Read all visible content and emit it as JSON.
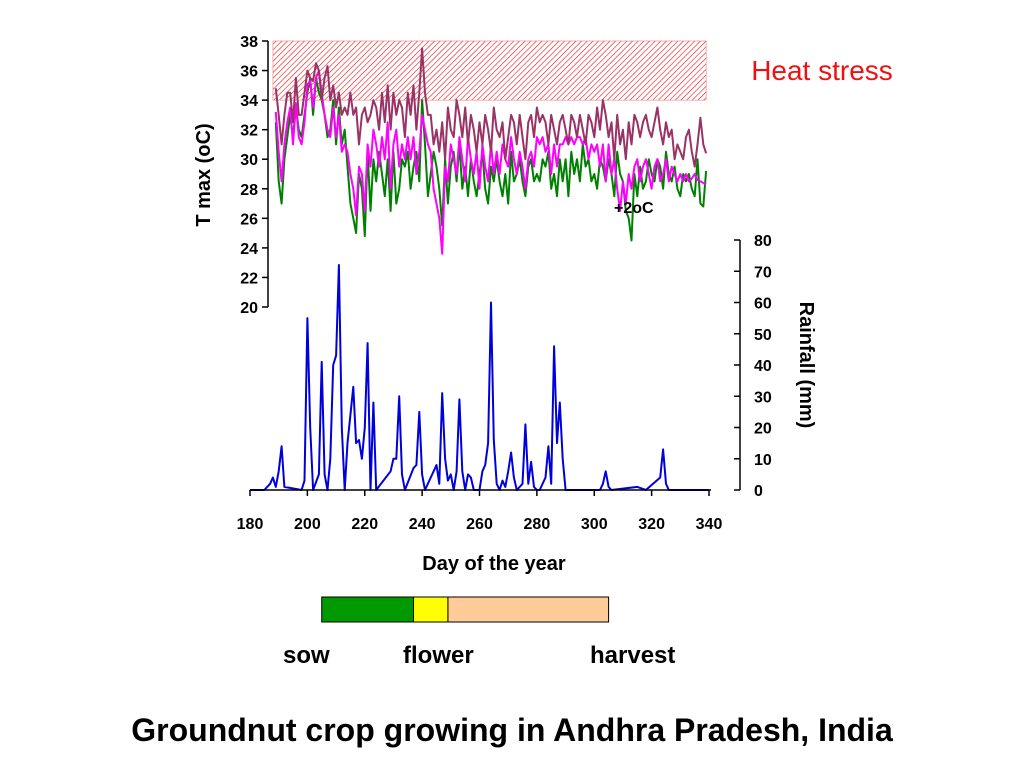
{
  "title": "Groundnut crop growing in Andhra Pradesh, India",
  "heat_stress_label": "Heat stress",
  "annotation": "+2",
  "annotation_unit": "oC",
  "stages": {
    "sow": "sow",
    "flower": "flower",
    "harvest": "harvest"
  },
  "colors": {
    "sow": "#009900",
    "flower": "#ffff00",
    "harvest": "#ffcc99",
    "rain": "#0000dd",
    "t_base": "#008000",
    "t_plus": "#ff00ff",
    "t_plus2": "#993366",
    "heat": "#ee1111"
  },
  "chart_data": {
    "type": "line",
    "xlabel": "Day of the year",
    "ylabel_left": "T max (oC)",
    "ylabel_right": "Rainfall (mm)",
    "xlim": [
      180,
      340
    ],
    "x_ticks": [
      180,
      200,
      220,
      240,
      260,
      280,
      300,
      320,
      340
    ],
    "ylim_left": [
      20,
      38
    ],
    "y_ticks_left": [
      20,
      22,
      24,
      26,
      28,
      30,
      32,
      34,
      36,
      38
    ],
    "ylim_right": [
      0,
      80
    ],
    "y_ticks_right": [
      0,
      10,
      20,
      30,
      40,
      50,
      60,
      70,
      80
    ],
    "heat_stress_range": {
      "x": [
        188,
        339
      ],
      "y": [
        34,
        38
      ]
    },
    "stage_bars": [
      {
        "stage": "sow",
        "start": 205,
        "end": 237
      },
      {
        "stage": "flower",
        "start": 237,
        "end": 249
      },
      {
        "stage": "harvest",
        "start": 249,
        "end": 305
      }
    ],
    "series": [
      {
        "axis": "left",
        "color_key": "t_base",
        "x": [
          189,
          190,
          191,
          192,
          193,
          194,
          195,
          196,
          197,
          198,
          199,
          200,
          201,
          202,
          203,
          204,
          205,
          206,
          207,
          208,
          209,
          210,
          211,
          212,
          213,
          214,
          215,
          216,
          217,
          218,
          219,
          220,
          221,
          222,
          223,
          224,
          225,
          226,
          227,
          228,
          229,
          230,
          231,
          232,
          233,
          234,
          235,
          236,
          237,
          238,
          239,
          240,
          241,
          242,
          243,
          244,
          245,
          246,
          247,
          248,
          249,
          250,
          251,
          252,
          253,
          254,
          255,
          256,
          257,
          258,
          259,
          260,
          261,
          262,
          263,
          264,
          265,
          266,
          267,
          268,
          269,
          270,
          271,
          272,
          273,
          274,
          275,
          276,
          277,
          278,
          279,
          280,
          281,
          282,
          283,
          284,
          285,
          286,
          287,
          288,
          289,
          290,
          291,
          292,
          293,
          294,
          295,
          296,
          297,
          298,
          299,
          300,
          301,
          302,
          303,
          304,
          305,
          306,
          307,
          308,
          309,
          310,
          311,
          312,
          313,
          314,
          315,
          316,
          317,
          318,
          319,
          320,
          321,
          322,
          323,
          324,
          325,
          326,
          327,
          328,
          329,
          330,
          331,
          332,
          333,
          334,
          335,
          336,
          337,
          338,
          339
        ],
        "y": [
          32.5,
          28.5,
          27,
          30,
          31.5,
          33,
          31.5,
          33.5,
          32,
          31.5,
          33,
          34.5,
          35.5,
          33,
          35.5,
          34.5,
          34,
          33,
          31.5,
          32,
          34,
          31,
          33.5,
          31,
          32,
          29.5,
          27,
          26,
          25,
          29,
          28,
          24.8,
          30.5,
          26.5,
          30,
          28.5,
          30.5,
          29,
          27.5,
          30,
          26.5,
          30.5,
          27,
          28,
          30,
          29.5,
          30.5,
          28,
          29.5,
          30.5,
          28.5,
          34,
          31,
          27.5,
          29,
          30.5,
          29.5,
          28,
          25.5,
          30,
          27,
          29.5,
          30.5,
          28.5,
          31,
          28,
          29.5,
          27.5,
          30,
          28.5,
          27.5,
          29,
          30.5,
          28,
          27,
          29.5,
          28.5,
          30,
          28.5,
          27.5,
          29,
          27,
          30.5,
          28.5,
          29,
          30,
          28.5,
          27.5,
          29.5,
          30,
          28.5,
          29,
          28.5,
          30,
          29.5,
          30.5,
          28,
          29,
          27.5,
          30,
          28.5,
          30,
          27.5,
          30.5,
          29,
          30,
          28.5,
          31,
          29.5,
          30,
          28.5,
          29,
          28,
          30,
          29.5,
          28.5,
          30,
          29,
          27.5,
          30.5,
          29,
          28.5,
          26.5,
          26,
          24.5,
          29,
          27.5,
          29.5,
          28,
          28.5,
          30,
          29,
          28.5,
          30,
          29.5,
          28,
          30.5,
          29,
          28.5,
          29.5,
          28,
          27.5,
          29,
          28.5,
          29,
          28,
          27.5,
          30,
          27,
          26.8,
          29.2
        ]
      },
      {
        "axis": "left",
        "color_key": "t_plus",
        "x": [
          189,
          190,
          191,
          192,
          193,
          194,
          195,
          196,
          197,
          198,
          199,
          200,
          201,
          202,
          203,
          204,
          205,
          206,
          207,
          208,
          209,
          210,
          211,
          212,
          213,
          214,
          215,
          216,
          217,
          218,
          219,
          220,
          221,
          222,
          223,
          224,
          225,
          226,
          227,
          228,
          229,
          230,
          231,
          232,
          233,
          234,
          235,
          236,
          237,
          238,
          239,
          240,
          241,
          242,
          243,
          244,
          245,
          246,
          247,
          248,
          249,
          250,
          251,
          252,
          253,
          254,
          255,
          256,
          257,
          258,
          259,
          260,
          261,
          262,
          263,
          264,
          265,
          266,
          267,
          268,
          269,
          270,
          271,
          272,
          273,
          274,
          275,
          276,
          277,
          278,
          279,
          280,
          281,
          282,
          283,
          284,
          285,
          286,
          287,
          288,
          289,
          290,
          291,
          292,
          293,
          294,
          295,
          296,
          297,
          298,
          299,
          300,
          301,
          302,
          303,
          304,
          305,
          306,
          307,
          308,
          309,
          310,
          311,
          312,
          313,
          314,
          315,
          316,
          317,
          318,
          319,
          320,
          321,
          322,
          323,
          324,
          325,
          326,
          327,
          328,
          329,
          330,
          331,
          332,
          333,
          334,
          335,
          336,
          337,
          338,
          339
        ],
        "y": [
          33.2,
          30.5,
          28.5,
          31,
          32.5,
          33.5,
          31,
          33.8,
          31.5,
          31,
          32.5,
          35,
          35.3,
          33.5,
          35.5,
          36,
          34.5,
          33,
          32,
          31.5,
          33.5,
          31.5,
          33,
          30.5,
          31,
          30.5,
          29,
          28,
          26.2,
          29.5,
          29,
          26.5,
          31,
          29.5,
          32,
          31,
          29.5,
          31.5,
          30,
          32.5,
          28,
          31,
          32,
          29.5,
          31,
          30,
          31.5,
          30,
          31.5,
          29,
          30.5,
          33,
          32,
          31,
          30.5,
          28,
          27,
          26,
          23.6,
          29.5,
          28.5,
          31,
          30,
          29,
          31.5,
          30,
          28.5,
          31.5,
          30,
          29,
          30.5,
          28,
          31,
          29.5,
          28.5,
          31,
          29,
          30.5,
          29,
          31,
          30,
          29.5,
          31.5,
          30,
          29,
          30.5,
          29.5,
          28,
          30,
          30.5,
          29.5,
          31.5,
          31,
          31.5,
          30.5,
          31,
          29,
          31,
          29.5,
          31,
          31,
          31.5,
          31,
          31.5,
          31,
          31.5,
          31.5,
          31,
          31.5,
          30,
          31,
          30.5,
          31,
          29.5,
          31,
          28.5,
          31,
          29,
          30,
          28,
          26.5,
          28.5,
          27,
          29,
          28,
          29.5,
          30,
          28.5,
          29.5,
          30,
          29,
          28,
          29.5,
          30,
          28.5,
          29,
          30,
          28.5,
          29.5,
          29,
          28.5,
          29,
          28.5,
          29,
          28.5,
          28.7,
          29,
          28.6,
          28.5,
          28.4,
          28.3
        ]
      },
      {
        "axis": "left",
        "color_key": "t_plus2",
        "x": [
          189,
          190,
          191,
          192,
          193,
          194,
          195,
          196,
          197,
          198,
          199,
          200,
          201,
          202,
          203,
          204,
          205,
          206,
          207,
          208,
          209,
          210,
          211,
          212,
          213,
          214,
          215,
          216,
          217,
          218,
          219,
          220,
          221,
          222,
          223,
          224,
          225,
          226,
          227,
          228,
          229,
          230,
          231,
          232,
          233,
          234,
          235,
          236,
          237,
          238,
          239,
          240,
          241,
          242,
          243,
          244,
          245,
          246,
          247,
          248,
          249,
          250,
          251,
          252,
          253,
          254,
          255,
          256,
          257,
          258,
          259,
          260,
          261,
          262,
          263,
          264,
          265,
          266,
          267,
          268,
          269,
          270,
          271,
          272,
          273,
          274,
          275,
          276,
          277,
          278,
          279,
          280,
          281,
          282,
          283,
          284,
          285,
          286,
          287,
          288,
          289,
          290,
          291,
          292,
          293,
          294,
          295,
          296,
          297,
          298,
          299,
          300,
          301,
          302,
          303,
          304,
          305,
          306,
          307,
          308,
          309,
          310,
          311,
          312,
          313,
          314,
          315,
          316,
          317,
          318,
          319,
          320,
          321,
          322,
          323,
          324,
          325,
          326,
          327,
          328,
          329,
          330,
          331,
          332,
          333,
          334,
          335,
          336,
          337,
          338,
          339
        ],
        "y": [
          34.8,
          33,
          31,
          33,
          34.5,
          34.5,
          32.5,
          35.5,
          33,
          33,
          34.5,
          36,
          35.5,
          35.3,
          36.5,
          36,
          34,
          35.5,
          36.3,
          34,
          35,
          33.5,
          34.5,
          33,
          33.5,
          33,
          34.5,
          33,
          33.5,
          31,
          33,
          33.5,
          32.5,
          33,
          34,
          33.5,
          32,
          34.5,
          32.5,
          35,
          32,
          34.5,
          33,
          34,
          33.5,
          31.5,
          34.5,
          33,
          35,
          32,
          34.5,
          37.5,
          34.5,
          33,
          33,
          31,
          32,
          30.5,
          32.5,
          30,
          33.5,
          32,
          31.5,
          34,
          33,
          31.5,
          33.5,
          31,
          33,
          32,
          30.5,
          32.5,
          31,
          33,
          32,
          30.5,
          33.5,
          32,
          31.5,
          32.5,
          30,
          31.5,
          33,
          32.5,
          31,
          33,
          31.5,
          30,
          32.5,
          33,
          31.5,
          33.5,
          32.5,
          33,
          32.5,
          31,
          33,
          32,
          31,
          32.5,
          33,
          32,
          31,
          33,
          32.5,
          31.5,
          33,
          32,
          31,
          33,
          32.5,
          31.5,
          33.5,
          32,
          34,
          33,
          31.5,
          32.5,
          30,
          33,
          31,
          32,
          30,
          32.5,
          31,
          33,
          32.5,
          31.5,
          32.5,
          33,
          32,
          31.5,
          32.5,
          33.5,
          32,
          31,
          32.5,
          31.5,
          32,
          30,
          31,
          30.5,
          30,
          31.5,
          32,
          30.5,
          29.5,
          31,
          32.8,
          31,
          30.4
        ]
      },
      {
        "axis": "right",
        "color_key": "rain",
        "x": [
          180,
          185,
          187,
          188,
          189,
          190,
          191,
          192,
          198,
          199,
          200,
          201,
          202,
          204,
          205,
          206,
          207,
          208,
          209,
          210,
          211,
          212,
          213,
          214,
          215,
          216,
          217,
          218,
          219,
          220,
          221,
          222,
          223,
          224,
          229,
          230,
          231,
          232,
          233,
          234,
          237,
          238,
          239,
          240,
          241,
          245,
          246,
          247,
          248,
          249,
          250,
          251,
          252,
          253,
          254,
          255,
          256,
          257,
          258,
          259,
          260,
          261,
          262,
          263,
          264,
          265,
          266,
          267,
          268,
          269,
          270,
          271,
          272,
          273,
          275,
          276,
          277,
          278,
          279,
          280,
          281,
          283,
          284,
          285,
          286,
          287,
          288,
          289,
          290,
          291,
          292,
          302,
          303,
          304,
          305,
          306,
          315,
          318,
          323,
          324,
          325,
          326,
          327,
          335,
          340
        ],
        "y": [
          0,
          0,
          2,
          4,
          1,
          6,
          14,
          1,
          0,
          3,
          55,
          20,
          0,
          5,
          41,
          5,
          0,
          10,
          40,
          43,
          72,
          20,
          0,
          15,
          24,
          33,
          15,
          16,
          10,
          20,
          47,
          0,
          28,
          0,
          6,
          10,
          10,
          30,
          5,
          0,
          7,
          8,
          25,
          5,
          0,
          8,
          2,
          31,
          10,
          3,
          5,
          0,
          6,
          29,
          6,
          0,
          5,
          4,
          0,
          0,
          0,
          6,
          8,
          15,
          60,
          16,
          2,
          0,
          3,
          1,
          6,
          12,
          4,
          0,
          2,
          21,
          2,
          9,
          1,
          0,
          0,
          4,
          14,
          2,
          46,
          15,
          28,
          10,
          0,
          0,
          0,
          0,
          2,
          6,
          1,
          0,
          1,
          0,
          4,
          13,
          2,
          0,
          0,
          0,
          0
        ]
      }
    ]
  }
}
